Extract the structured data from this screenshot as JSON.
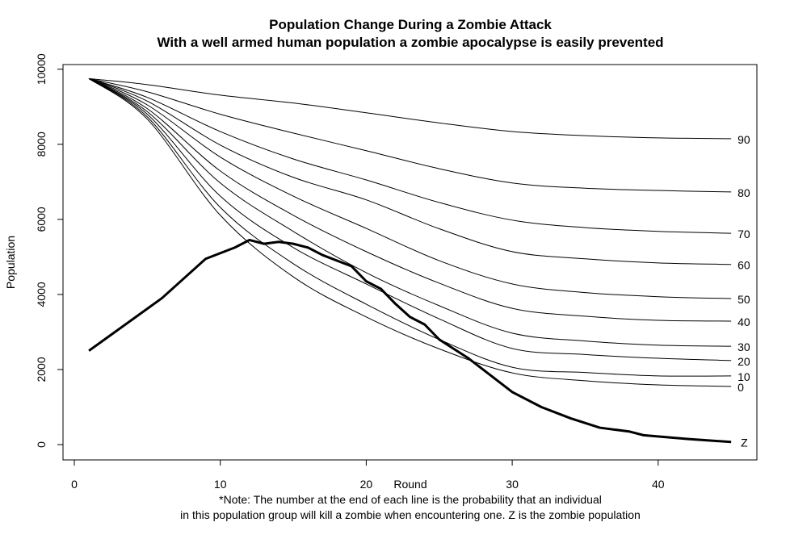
{
  "chart_data": {
    "type": "line",
    "title": "Population Change During a Zombie Attack",
    "subtitle": "With a well armed human population a zombie apocalypse is easily prevented",
    "xlabel": "Round",
    "ylabel": "Population",
    "xlim": [
      0,
      46
    ],
    "ylim": [
      -300,
      10300
    ],
    "x_ticks": [
      0,
      10,
      20,
      30,
      40
    ],
    "y_ticks": [
      0,
      2000,
      4000,
      6000,
      8000,
      10000
    ],
    "grid": false,
    "note": [
      "*Note: The number at the end of each line is the probability that an individual",
      "in this population group will kill a zombie when encountering one. Z is the zombie population"
    ],
    "x": [
      1,
      5,
      10,
      15,
      20,
      25,
      30,
      35,
      40,
      45
    ],
    "series": [
      {
        "name": "90",
        "values": [
          9750,
          9590,
          9310,
          9100,
          8840,
          8570,
          8340,
          8230,
          8170,
          8150
        ]
      },
      {
        "name": "80",
        "values": [
          9750,
          9400,
          8800,
          8300,
          7830,
          7350,
          6970,
          6830,
          6770,
          6730
        ]
      },
      {
        "name": "70",
        "values": [
          9750,
          9250,
          8340,
          7610,
          7050,
          6450,
          5980,
          5780,
          5680,
          5630
        ]
      },
      {
        "name": "60",
        "values": [
          9750,
          9150,
          7980,
          7120,
          6520,
          5750,
          5140,
          4950,
          4840,
          4800
        ]
      },
      {
        "name": "50",
        "values": [
          9750,
          9050,
          7660,
          6620,
          5760,
          4900,
          4280,
          4050,
          3940,
          3890
        ]
      },
      {
        "name": "40",
        "values": [
          9750,
          8950,
          7290,
          6110,
          5140,
          4300,
          3630,
          3420,
          3310,
          3290
        ]
      },
      {
        "name": "30",
        "values": [
          9750,
          8870,
          6970,
          5680,
          4580,
          3700,
          2970,
          2760,
          2650,
          2620
        ]
      },
      {
        "name": "20",
        "values": [
          9750,
          8800,
          6620,
          5250,
          4280,
          3350,
          2560,
          2400,
          2300,
          2240
        ]
      },
      {
        "name": "10",
        "values": [
          9750,
          8730,
          6320,
          4820,
          3740,
          2800,
          2060,
          1920,
          1830,
          1830
        ]
      },
      {
        "name": "0",
        "values": [
          9750,
          8670,
          6110,
          4470,
          3400,
          2550,
          1910,
          1700,
          1590,
          1550
        ]
      }
    ],
    "zombie": {
      "name": "Z",
      "x": [
        1,
        6,
        9,
        11,
        12,
        13,
        14,
        15,
        16,
        17,
        19,
        20,
        21,
        22,
        23,
        24,
        25,
        27,
        28,
        30,
        32,
        34,
        36,
        38,
        39,
        42,
        45
      ],
      "values": [
        2500,
        3900,
        4950,
        5250,
        5450,
        5350,
        5400,
        5350,
        5250,
        5050,
        4750,
        4350,
        4150,
        3750,
        3400,
        3200,
        2800,
        2300,
        2000,
        1400,
        1000,
        700,
        450,
        350,
        250,
        150,
        70
      ]
    }
  }
}
